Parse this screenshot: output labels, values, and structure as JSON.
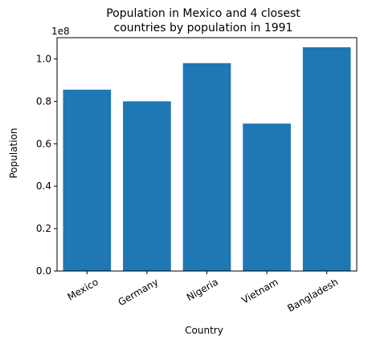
{
  "chart_data": {
    "type": "bar",
    "title_lines": [
      "Population in Mexico and 4 closest",
      "countries by population in 1991"
    ],
    "xlabel": "Country",
    "ylabel": "Population",
    "y_offset_label": "1e8",
    "categories": [
      "Mexico",
      "Germany",
      "Nigeria",
      "Vietnam",
      "Bangladesh"
    ],
    "values": [
      85500000,
      80000000,
      98000000,
      69500000,
      105500000
    ],
    "ylim": [
      0,
      110000000
    ],
    "y_ticks": [
      0,
      20000000,
      40000000,
      60000000,
      80000000,
      100000000
    ],
    "y_tick_labels": [
      "0.0",
      "0.2",
      "0.4",
      "0.6",
      "0.8",
      "1.0"
    ],
    "bar_color": "#1f77b4",
    "grid": false,
    "legend": "none"
  }
}
